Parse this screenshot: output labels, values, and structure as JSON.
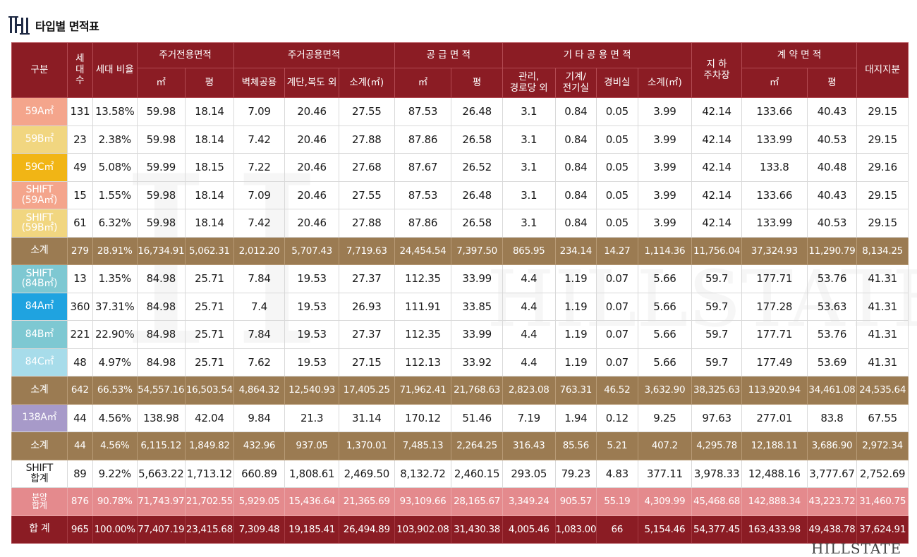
{
  "title": "타입별 면적표",
  "brand_watermark": "HILLSTATE",
  "colors": {
    "header_bg": "#8b1c24",
    "subtotal_bg": "#9b7b52",
    "pink_bg": "#e48a8d",
    "total_bg": "#8b1c24"
  },
  "headers": {
    "category": "구분",
    "households": "세\n대\n수",
    "ratio": "세대 비율",
    "exclusive": "주거전용면적",
    "shared": "주거공용면적",
    "supply": "공 급 면 적",
    "other": "기 타 공 용 면 적",
    "parking": "지 하\n주차장",
    "contract": "계 약 면 적",
    "land": "대지지분",
    "sqm": "㎡",
    "pyeong": "평",
    "wall": "벽체공용",
    "stair": "계단,복도 외",
    "sub_sqm": "소계(㎡)",
    "mgmt": "관리,\n경로당 외",
    "machine": "기계/\n전기실",
    "guard": "경비실"
  },
  "rows": [
    {
      "type": "59A㎡",
      "style": "type",
      "color": "#f4a58c",
      "cells": [
        "131",
        "13.58%",
        "59.98",
        "18.14",
        "7.09",
        "20.46",
        "27.55",
        "87.53",
        "26.48",
        "3.1",
        "0.84",
        "0.05",
        "3.99",
        "42.14",
        "133.66",
        "40.43",
        "29.15"
      ]
    },
    {
      "type": "59B㎡",
      "style": "type",
      "color": "#f1d680",
      "cells": [
        "23",
        "2.38%",
        "59.98",
        "18.14",
        "7.42",
        "20.46",
        "27.88",
        "87.86",
        "26.58",
        "3.1",
        "0.84",
        "0.05",
        "3.99",
        "42.14",
        "133.99",
        "40.53",
        "29.15"
      ]
    },
    {
      "type": "59C㎡",
      "style": "type",
      "color": "#f1b515",
      "cells": [
        "49",
        "5.08%",
        "59.99",
        "18.15",
        "7.22",
        "20.46",
        "27.68",
        "87.67",
        "26.52",
        "3.1",
        "0.84",
        "0.05",
        "3.99",
        "42.14",
        "133.8",
        "40.48",
        "29.16"
      ]
    },
    {
      "type": "SHIFT\n(59A㎡)",
      "style": "type",
      "color": "#f4a58c",
      "cells": [
        "15",
        "1.55%",
        "59.98",
        "18.14",
        "7.09",
        "20.46",
        "27.55",
        "87.53",
        "26.48",
        "3.1",
        "0.84",
        "0.05",
        "3.99",
        "42.14",
        "133.66",
        "40.43",
        "29.15"
      ]
    },
    {
      "type": "SHIFT\n(59B㎡)",
      "style": "type",
      "color": "#f1d680",
      "cells": [
        "61",
        "6.32%",
        "59.98",
        "18.14",
        "7.42",
        "20.46",
        "27.88",
        "87.86",
        "26.58",
        "3.1",
        "0.84",
        "0.05",
        "3.99",
        "42.14",
        "133.99",
        "40.53",
        "29.15"
      ]
    },
    {
      "type": "소계",
      "style": "sub",
      "color": "#9b7b52",
      "cells": [
        "279",
        "28.91%",
        "16,734.91",
        "5,062.31",
        "2,012.20",
        "5,707.43",
        "7,719.63",
        "24,454.54",
        "7,397.50",
        "865.95",
        "234.14",
        "14.27",
        "1,114.36",
        "11,756.04",
        "37,324.93",
        "11,290.79",
        "8,134.25"
      ]
    },
    {
      "type": "SHIFT\n(84B㎡)",
      "style": "type",
      "color": "#7ec8d2",
      "cells": [
        "13",
        "1.35%",
        "84.98",
        "25.71",
        "7.84",
        "19.53",
        "27.37",
        "112.35",
        "33.99",
        "4.4",
        "1.19",
        "0.07",
        "5.66",
        "59.7",
        "177.71",
        "53.76",
        "41.31"
      ]
    },
    {
      "type": "84A㎡",
      "style": "type",
      "color": "#1fa3e0",
      "cells": [
        "360",
        "37.31%",
        "84.98",
        "25.71",
        "7.4",
        "19.53",
        "26.93",
        "111.91",
        "33.85",
        "4.4",
        "1.19",
        "0.07",
        "5.66",
        "59.7",
        "177.28",
        "53.63",
        "41.31"
      ]
    },
    {
      "type": "84B㎡",
      "style": "type",
      "color": "#7ec8d2",
      "cells": [
        "221",
        "22.90%",
        "84.98",
        "25.71",
        "7.84",
        "19.53",
        "27.37",
        "112.35",
        "33.99",
        "4.4",
        "1.19",
        "0.07",
        "5.66",
        "59.7",
        "177.71",
        "53.76",
        "41.31"
      ]
    },
    {
      "type": "84C㎡",
      "style": "type",
      "color": "#a7dcea",
      "cells": [
        "48",
        "4.97%",
        "84.98",
        "25.71",
        "7.62",
        "19.53",
        "27.15",
        "112.13",
        "33.92",
        "4.4",
        "1.19",
        "0.07",
        "5.66",
        "59.7",
        "177.49",
        "53.69",
        "41.31"
      ]
    },
    {
      "type": "소계",
      "style": "sub",
      "color": "#9b7b52",
      "cells": [
        "642",
        "66.53%",
        "54,557.16",
        "16,503.54",
        "4,864.32",
        "12,540.93",
        "17,405.25",
        "71,962.41",
        "21,768.63",
        "2,823.08",
        "763.31",
        "46.52",
        "3,632.90",
        "38,325.63",
        "113,920.94",
        "34,461.08",
        "24,535.64"
      ]
    },
    {
      "type": "138A㎡",
      "style": "type",
      "color": "#a79ac9",
      "cells": [
        "44",
        "4.56%",
        "138.98",
        "42.04",
        "9.84",
        "21.3",
        "31.14",
        "170.12",
        "51.46",
        "7.19",
        "1.94",
        "0.12",
        "9.25",
        "97.63",
        "277.01",
        "83.8",
        "67.55"
      ]
    },
    {
      "type": "소계",
      "style": "sub",
      "color": "#9b7b52",
      "cells": [
        "44",
        "4.56%",
        "6,115.12",
        "1,849.82",
        "432.96",
        "937.05",
        "1,370.01",
        "7,485.13",
        "2,264.25",
        "316.43",
        "85.56",
        "5.21",
        "407.2",
        "4,295.78",
        "12,188.11",
        "3,686.90",
        "2,972.34"
      ]
    },
    {
      "type": "SHIFT\n합계",
      "style": "white",
      "color": "#ffffff",
      "cells": [
        "89",
        "9.22%",
        "5,663.22",
        "1,713.12",
        "660.89",
        "1,808.61",
        "2,469.50",
        "8,132.72",
        "2,460.15",
        "293.05",
        "79.23",
        "4.83",
        "377.11",
        "3,978.33",
        "12,488.16",
        "3,777.67",
        "2,752.69"
      ]
    },
    {
      "type": "분양\n합계",
      "style": "pink",
      "color": "#e48a8d",
      "cells": [
        "876",
        "90.78%",
        "71,743.97",
        "21,702.55",
        "5,929.05",
        "15,436.64",
        "21,365.69",
        "93,109.66",
        "28,165.67",
        "3,349.24",
        "905.57",
        "55.19",
        "4,309.99",
        "45,468.68",
        "142,888.34",
        "43,223.72",
        "31,460.75"
      ]
    },
    {
      "type": "합 계",
      "style": "total",
      "color": "#8b1c24",
      "cells": [
        "965",
        "100.00%",
        "77,407.19",
        "23,415.68",
        "7,309.48",
        "19,185.41",
        "26,494.89",
        "103,902.08",
        "31,430.38",
        "4,005.46",
        "1,083.00",
        "66",
        "5,154.46",
        "54,377.45",
        "163,433.98",
        "49,438.78",
        "37,624.91"
      ]
    }
  ]
}
